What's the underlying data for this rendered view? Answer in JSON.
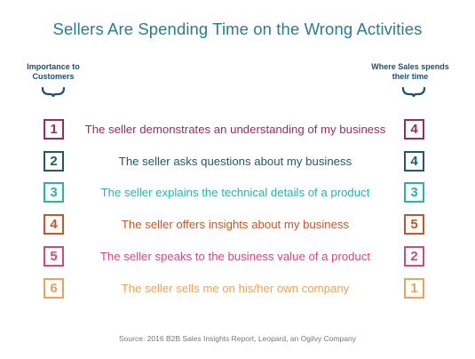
{
  "title": "Sellers Are Spending Time on the Wrong Activities",
  "left_header": [
    "Importance to",
    "Customers"
  ],
  "right_header": [
    "Where Sales spends",
    "their time"
  ],
  "header_color": "#1e4f6b",
  "rows": [
    {
      "importance": "1",
      "statement": "The seller demonstrates an understanding of my business",
      "time": "4",
      "color": "#9c2b5a"
    },
    {
      "importance": "2",
      "statement": "The seller asks questions about my business",
      "time": "4",
      "color": "#1f5a66"
    },
    {
      "importance": "3",
      "statement": "The seller explains the technical details of a product",
      "time": "3",
      "color": "#2bb3a8"
    },
    {
      "importance": "4",
      "statement": "The seller offers insights about my business",
      "time": "5",
      "color": "#c4572a"
    },
    {
      "importance": "5",
      "statement": "The seller speaks to the business value of a product",
      "time": "2",
      "color": "#d6487a"
    },
    {
      "importance": "6",
      "statement": "The seller sells me on his/her own company",
      "time": "1",
      "color": "#eba35a"
    }
  ],
  "source": "Source: 2016 B2B Sales Insights Report, Leopard, an Ogilvy Company"
}
